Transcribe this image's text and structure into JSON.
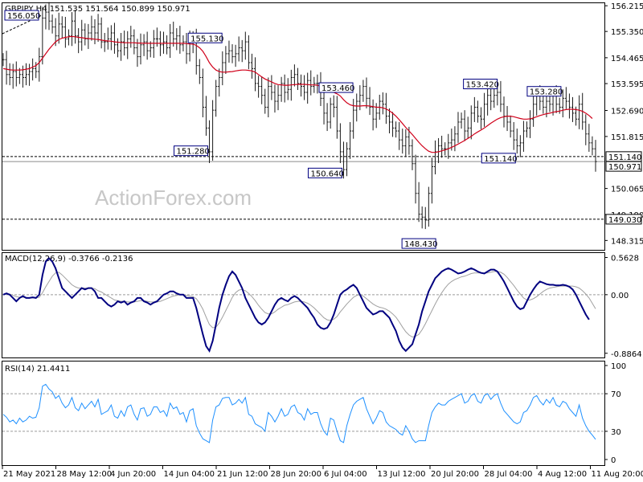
{
  "header": {
    "symbol": "GBPJPY,H4",
    "ohlc": "151.535 151.564 150.899 150.971"
  },
  "watermark": "ActionForex.com",
  "colors": {
    "price": "#1a1a1a",
    "ma": "#d0001a",
    "macd_line": "#000080",
    "macd_signal": "#a0a0a0",
    "rsi": "#1e90ff",
    "label_border": "#000080"
  },
  "chart_data": [
    {
      "type": "line",
      "panel": "price",
      "title": "GBPJPY,H4",
      "y_ticks": [
        "156.215",
        "155.350",
        "154.465",
        "153.595",
        "152.690",
        "151.815",
        "150.065",
        "149.190",
        "148.315"
      ],
      "price_tags": [
        "151.140",
        "150.971",
        "149.030"
      ],
      "ylim": [
        148.0,
        156.3
      ],
      "x_tick_labels": [
        "21 May 2021",
        "28 May 12:00",
        "4 Jun 20:00",
        "14 Jun 04:00",
        "21 Jun 12:00",
        "28 Jun 20:00",
        "6 Jul 04:00",
        "13 Jul 12:00",
        "20 Jul 20:00",
        "28 Jul 04:00",
        "4 Aug 12:00",
        "11 Aug 20:00"
      ],
      "horizontal_levels": [
        151.14,
        149.03
      ],
      "annotations": [
        {
          "text": "156.050",
          "bar": 14,
          "y": 156.05
        },
        {
          "text": "155.130",
          "bar": 58,
          "y": 155.13
        },
        {
          "text": "151.280",
          "bar": 63,
          "y": 151.28
        },
        {
          "text": "153.460",
          "bar": 98,
          "y": 153.46
        },
        {
          "text": "150.640",
          "bar": 104,
          "y": 150.64
        },
        {
          "text": "148.430",
          "bar": 127,
          "y": 148.43
        },
        {
          "text": "153.420",
          "bar": 148,
          "y": 153.42
        },
        {
          "text": "151.140",
          "bar": 157,
          "y": 151.14
        },
        {
          "text": "153.280",
          "bar": 166,
          "y": 153.28
        }
      ],
      "series": [
        {
          "values": [
            154.4,
            153.9,
            153.8,
            154.0,
            153.8,
            153.9,
            153.8,
            153.9,
            154.0,
            154.1,
            154.0,
            154.5,
            155.8,
            156.0,
            155.7,
            155.5,
            155.2,
            155.6,
            155.5,
            155.1,
            155.2,
            155.7,
            155.2,
            155.0,
            155.4,
            155.1,
            155.3,
            155.5,
            155.3,
            155.6,
            155.0,
            155.0,
            155.1,
            155.3,
            154.9,
            154.7,
            155.0,
            154.8,
            155.1,
            155.2,
            154.8,
            154.5,
            154.9,
            155.0,
            154.7,
            154.8,
            155.1,
            155.1,
            154.9,
            155.0,
            154.8,
            155.3,
            155.1,
            155.2,
            154.9,
            155.0,
            154.6,
            155.0,
            155.1,
            154.2,
            153.8,
            152.8,
            152.1,
            151.3,
            152.7,
            153.5,
            153.8,
            154.3,
            154.6,
            154.7,
            154.5,
            154.6,
            154.8,
            154.7,
            155.0,
            154.3,
            154.1,
            153.6,
            153.5,
            153.2,
            152.8,
            153.5,
            153.3,
            153.0,
            153.2,
            153.6,
            153.3,
            153.4,
            153.8,
            153.9,
            153.6,
            153.5,
            153.3,
            153.7,
            153.5,
            153.6,
            153.6,
            153.1,
            152.6,
            152.3,
            152.9,
            152.8,
            152.0,
            151.3,
            150.7,
            151.4,
            152.0,
            152.7,
            153.0,
            153.2,
            153.5,
            153.1,
            152.8,
            152.4,
            152.6,
            153.0,
            152.9,
            152.5,
            152.3,
            152.1,
            152.0,
            151.7,
            151.5,
            151.8,
            151.5,
            150.9,
            149.9,
            149.2,
            149.1,
            149.0,
            149.9,
            150.8,
            151.3,
            151.5,
            151.4,
            151.4,
            151.6,
            151.7,
            151.9,
            152.3,
            152.4,
            152.0,
            152.1,
            152.6,
            152.8,
            152.5,
            152.4,
            152.9,
            153.2,
            153.0,
            153.2,
            153.3,
            152.9,
            152.5,
            152.3,
            152.0,
            151.7,
            151.5,
            151.6,
            152.0,
            152.1,
            152.4,
            152.9,
            153.2,
            153.0,
            152.8,
            153.0,
            152.9,
            153.2,
            152.9,
            152.8,
            153.1,
            153.0,
            152.8,
            152.6,
            152.4,
            152.9,
            152.3,
            151.9,
            151.6,
            151.4,
            150.97
          ]
        },
        {
          "name": "",
          "values": [
            154.1,
            154.08,
            154.06,
            154.05,
            154.05,
            154.05,
            154.06,
            154.08,
            154.1,
            154.15,
            154.2,
            154.3,
            154.45,
            154.6,
            154.75,
            154.88,
            155.0,
            155.08,
            155.12,
            155.15,
            155.17,
            155.18,
            155.17,
            155.15,
            155.14,
            155.12,
            155.11,
            155.1,
            155.09,
            155.08,
            155.06,
            155.04,
            155.03,
            155.02,
            155.0,
            154.99,
            154.98,
            154.97,
            154.97,
            154.97,
            154.97,
            154.96,
            154.96,
            154.95,
            154.95,
            154.95,
            154.95,
            154.95,
            154.95,
            154.95,
            154.95,
            154.95,
            154.95,
            154.95,
            154.95,
            154.95,
            154.94,
            154.93,
            154.92,
            154.88,
            154.8,
            154.68,
            154.5,
            154.3,
            154.15,
            154.05,
            154.0,
            153.98,
            153.98,
            153.99,
            154.0,
            154.02,
            154.04,
            154.05,
            154.05,
            154.04,
            154.02,
            153.98,
            153.9,
            153.82,
            153.75,
            153.7,
            153.65,
            153.6,
            153.56,
            153.55,
            153.54,
            153.54,
            153.55,
            153.56,
            153.57,
            153.57,
            153.57,
            153.56,
            153.55,
            153.55,
            153.54,
            153.5,
            153.44,
            153.38,
            153.33,
            153.3,
            153.25,
            153.18,
            153.05,
            152.95,
            152.88,
            152.85,
            152.84,
            152.84,
            152.85,
            152.85,
            152.84,
            152.82,
            152.8,
            152.8,
            152.78,
            152.74,
            152.68,
            152.6,
            152.5,
            152.38,
            152.25,
            152.12,
            152.0,
            151.88,
            151.75,
            151.62,
            151.5,
            151.4,
            151.32,
            151.28,
            151.28,
            151.3,
            151.33,
            151.36,
            151.4,
            151.45,
            151.5,
            151.56,
            151.62,
            151.68,
            151.75,
            151.82,
            151.9,
            151.97,
            152.03,
            152.1,
            152.18,
            152.26,
            152.33,
            152.4,
            152.45,
            152.48,
            152.5,
            152.5,
            152.48,
            152.45,
            152.42,
            152.4,
            152.4,
            152.41,
            152.44,
            152.48,
            152.52,
            152.55,
            152.58,
            152.6,
            152.63,
            152.65,
            152.67,
            152.7,
            152.72,
            152.73,
            152.73,
            152.72,
            152.7,
            152.66,
            152.6,
            152.52,
            152.42
          ]
        }
      ]
    },
    {
      "type": "line",
      "panel": "macd",
      "title": "MACD(12,26,9) -0.3766 -0.2136",
      "y_ticks": [
        "0.5628",
        "0.00",
        "-0.8864"
      ],
      "ylim": [
        -0.95,
        0.63
      ],
      "series": [
        {
          "name": "MACD",
          "values": [
            0.0,
            0.02,
            0.0,
            -0.05,
            -0.1,
            -0.05,
            -0.02,
            -0.05,
            -0.05,
            -0.04,
            -0.05,
            0.0,
            0.3,
            0.5,
            0.55,
            0.5,
            0.4,
            0.25,
            0.1,
            0.05,
            0.0,
            -0.05,
            0.0,
            0.05,
            0.1,
            0.08,
            0.1,
            0.1,
            0.05,
            -0.05,
            -0.05,
            -0.1,
            -0.15,
            -0.18,
            -0.15,
            -0.1,
            -0.12,
            -0.1,
            -0.15,
            -0.12,
            -0.1,
            -0.05,
            -0.05,
            -0.1,
            -0.12,
            -0.15,
            -0.12,
            -0.1,
            -0.05,
            0.0,
            0.02,
            0.05,
            0.05,
            0.02,
            0.0,
            0.0,
            -0.05,
            -0.05,
            -0.05,
            -0.2,
            -0.4,
            -0.6,
            -0.78,
            -0.85,
            -0.7,
            -0.45,
            -0.2,
            0.0,
            0.15,
            0.28,
            0.35,
            0.3,
            0.2,
            0.1,
            -0.05,
            -0.15,
            -0.25,
            -0.35,
            -0.42,
            -0.45,
            -0.42,
            -0.35,
            -0.25,
            -0.15,
            -0.08,
            -0.05,
            -0.08,
            -0.1,
            -0.05,
            -0.02,
            -0.05,
            -0.1,
            -0.15,
            -0.2,
            -0.28,
            -0.35,
            -0.45,
            -0.5,
            -0.52,
            -0.5,
            -0.42,
            -0.3,
            -0.15,
            0.0,
            0.05,
            0.08,
            0.12,
            0.15,
            0.1,
            0.0,
            -0.1,
            -0.2,
            -0.25,
            -0.3,
            -0.28,
            -0.25,
            -0.25,
            -0.3,
            -0.35,
            -0.45,
            -0.55,
            -0.7,
            -0.8,
            -0.85,
            -0.8,
            -0.75,
            -0.6,
            -0.45,
            -0.25,
            -0.1,
            0.05,
            0.15,
            0.25,
            0.3,
            0.35,
            0.38,
            0.4,
            0.38,
            0.35,
            0.32,
            0.33,
            0.35,
            0.38,
            0.4,
            0.38,
            0.35,
            0.33,
            0.32,
            0.35,
            0.38,
            0.38,
            0.35,
            0.28,
            0.2,
            0.1,
            0.0,
            -0.1,
            -0.18,
            -0.22,
            -0.2,
            -0.1,
            0.0,
            0.08,
            0.15,
            0.2,
            0.18,
            0.16,
            0.15,
            0.15,
            0.14,
            0.14,
            0.15,
            0.14,
            0.12,
            0.08,
            0.0,
            -0.1,
            -0.2,
            -0.3,
            -0.3766
          ]
        },
        {
          "name": "Signal",
          "values": [
            0.0,
            0.01,
            0.01,
            -0.01,
            -0.03,
            -0.04,
            -0.04,
            -0.04,
            -0.05,
            -0.05,
            -0.05,
            -0.04,
            0.03,
            0.12,
            0.2,
            0.28,
            0.33,
            0.34,
            0.3,
            0.25,
            0.2,
            0.15,
            0.12,
            0.1,
            0.1,
            0.1,
            0.1,
            0.1,
            0.09,
            0.06,
            0.04,
            0.01,
            -0.02,
            -0.05,
            -0.08,
            -0.09,
            -0.1,
            -0.1,
            -0.11,
            -0.11,
            -0.11,
            -0.1,
            -0.09,
            -0.09,
            -0.1,
            -0.11,
            -0.11,
            -0.11,
            -0.1,
            -0.08,
            -0.06,
            -0.04,
            -0.02,
            -0.01,
            0.0,
            0.0,
            -0.01,
            -0.02,
            -0.03,
            -0.06,
            -0.13,
            -0.22,
            -0.34,
            -0.45,
            -0.5,
            -0.49,
            -0.43,
            -0.34,
            -0.24,
            -0.14,
            -0.04,
            0.03,
            0.07,
            0.08,
            0.06,
            0.02,
            -0.03,
            -0.09,
            -0.16,
            -0.22,
            -0.27,
            -0.29,
            -0.29,
            -0.26,
            -0.22,
            -0.19,
            -0.16,
            -0.15,
            -0.13,
            -0.11,
            -0.1,
            -0.1,
            -0.11,
            -0.13,
            -0.16,
            -0.2,
            -0.25,
            -0.3,
            -0.35,
            -0.38,
            -0.39,
            -0.37,
            -0.33,
            -0.26,
            -0.2,
            -0.14,
            -0.09,
            -0.04,
            -0.01,
            0.0,
            -0.02,
            -0.06,
            -0.1,
            -0.14,
            -0.17,
            -0.19,
            -0.2,
            -0.22,
            -0.25,
            -0.29,
            -0.34,
            -0.41,
            -0.49,
            -0.56,
            -0.61,
            -0.64,
            -0.63,
            -0.6,
            -0.53,
            -0.44,
            -0.34,
            -0.24,
            -0.14,
            -0.05,
            0.03,
            0.1,
            0.16,
            0.2,
            0.23,
            0.25,
            0.27,
            0.28,
            0.3,
            0.32,
            0.33,
            0.33,
            0.33,
            0.33,
            0.33,
            0.34,
            0.35,
            0.35,
            0.34,
            0.31,
            0.26,
            0.2,
            0.14,
            0.07,
            0.01,
            -0.05,
            -0.08,
            -0.08,
            -0.06,
            -0.03,
            0.01,
            0.05,
            0.08,
            0.1,
            0.11,
            0.12,
            0.13,
            0.13,
            0.13,
            0.13,
            0.13,
            0.12,
            0.1,
            0.06,
            0.01,
            -0.05,
            -0.13,
            -0.2136
          ]
        }
      ]
    },
    {
      "type": "line",
      "panel": "rsi",
      "title": "RSI(14) 21.4411",
      "y_ticks": [
        "100",
        "70",
        "30",
        "0"
      ],
      "ylim": [
        0,
        100
      ],
      "levels": [
        70,
        30
      ],
      "series": [
        {
          "name": "RSI",
          "values": [
            48,
            45,
            40,
            42,
            38,
            44,
            40,
            42,
            46,
            44,
            45,
            55,
            78,
            80,
            75,
            72,
            65,
            68,
            60,
            55,
            58,
            66,
            55,
            52,
            60,
            54,
            58,
            62,
            56,
            64,
            48,
            50,
            52,
            58,
            46,
            44,
            52,
            46,
            56,
            58,
            48,
            42,
            54,
            55,
            46,
            48,
            56,
            56,
            50,
            52,
            46,
            60,
            54,
            56,
            48,
            50,
            40,
            52,
            54,
            36,
            28,
            22,
            20,
            18,
            42,
            56,
            58,
            65,
            66,
            66,
            58,
            60,
            64,
            60,
            66,
            48,
            46,
            38,
            36,
            34,
            30,
            50,
            46,
            40,
            46,
            54,
            46,
            48,
            56,
            58,
            50,
            48,
            42,
            54,
            48,
            50,
            50,
            38,
            30,
            26,
            44,
            42,
            30,
            20,
            18,
            36,
            48,
            58,
            62,
            64,
            66,
            54,
            46,
            38,
            44,
            52,
            50,
            40,
            36,
            34,
            32,
            28,
            26,
            36,
            30,
            22,
            18,
            20,
            20,
            20,
            36,
            50,
            56,
            60,
            58,
            58,
            62,
            64,
            66,
            68,
            70,
            60,
            62,
            68,
            70,
            62,
            60,
            68,
            70,
            64,
            68,
            70,
            60,
            52,
            48,
            44,
            40,
            38,
            40,
            50,
            52,
            58,
            66,
            68,
            62,
            58,
            64,
            60,
            66,
            58,
            56,
            62,
            60,
            54,
            50,
            46,
            58,
            44,
            36,
            30,
            26,
            21.44
          ]
        }
      ],
      "x_tick_labels": [
        "21 May 2021",
        "28 May 12:00",
        "4 Jun 20:00",
        "14 Jun 04:00",
        "21 Jun 12:00",
        "28 Jun 20:00",
        "6 Jul 04:00",
        "13 Jul 12:00",
        "20 Jul 20:00",
        "28 Jul 04:00",
        "4 Aug 12:00",
        "11 Aug 20:00"
      ]
    }
  ]
}
